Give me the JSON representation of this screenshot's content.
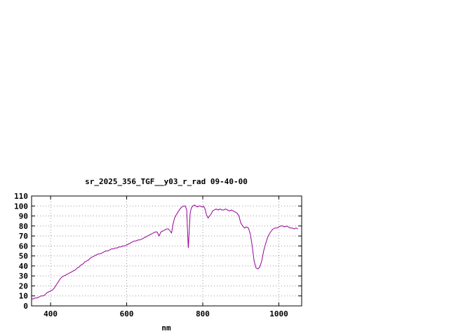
{
  "chart_data": {
    "type": "line",
    "title": "sr_2025_356_TGF__y03_r_rad 09-40-00",
    "xlabel": "nm",
    "ylabel": "",
    "xlim": [
      350,
      1060
    ],
    "ylim": [
      0,
      110
    ],
    "x_ticks": [
      400,
      600,
      800,
      1000
    ],
    "y_ticks": [
      0,
      10,
      20,
      30,
      40,
      50,
      60,
      70,
      80,
      90,
      100,
      110
    ],
    "grid": true,
    "legend": "none",
    "line_color": "#990099",
    "series": [
      {
        "name": "sr_2025_356_TGF__y03_r_rad",
        "points": [
          [
            350,
            7
          ],
          [
            355,
            7
          ],
          [
            360,
            8
          ],
          [
            365,
            8
          ],
          [
            370,
            9
          ],
          [
            375,
            10
          ],
          [
            380,
            10
          ],
          [
            385,
            11
          ],
          [
            390,
            13
          ],
          [
            395,
            14
          ],
          [
            400,
            15
          ],
          [
            405,
            16
          ],
          [
            410,
            18
          ],
          [
            415,
            21
          ],
          [
            420,
            24
          ],
          [
            425,
            27
          ],
          [
            430,
            29
          ],
          [
            435,
            30
          ],
          [
            440,
            31
          ],
          [
            445,
            32
          ],
          [
            450,
            33
          ],
          [
            455,
            34
          ],
          [
            460,
            35
          ],
          [
            465,
            36
          ],
          [
            470,
            38
          ],
          [
            475,
            39
          ],
          [
            480,
            41
          ],
          [
            485,
            42
          ],
          [
            490,
            44
          ],
          [
            495,
            45
          ],
          [
            500,
            46
          ],
          [
            505,
            48
          ],
          [
            510,
            49
          ],
          [
            515,
            50
          ],
          [
            520,
            51
          ],
          [
            525,
            52
          ],
          [
            530,
            52
          ],
          [
            535,
            53
          ],
          [
            540,
            54
          ],
          [
            545,
            55
          ],
          [
            550,
            55
          ],
          [
            555,
            56
          ],
          [
            560,
            57
          ],
          [
            565,
            57
          ],
          [
            570,
            58
          ],
          [
            575,
            58
          ],
          [
            580,
            59
          ],
          [
            585,
            59
          ],
          [
            590,
            60
          ],
          [
            595,
            60
          ],
          [
            600,
            61
          ],
          [
            605,
            62
          ],
          [
            610,
            63
          ],
          [
            615,
            64
          ],
          [
            620,
            65
          ],
          [
            625,
            65
          ],
          [
            630,
            66
          ],
          [
            635,
            66
          ],
          [
            640,
            67
          ],
          [
            645,
            68
          ],
          [
            650,
            69
          ],
          [
            655,
            70
          ],
          [
            660,
            71
          ],
          [
            665,
            72
          ],
          [
            670,
            73
          ],
          [
            675,
            74
          ],
          [
            680,
            74
          ],
          [
            685,
            70
          ],
          [
            690,
            74
          ],
          [
            695,
            75
          ],
          [
            700,
            76
          ],
          [
            705,
            77
          ],
          [
            710,
            77
          ],
          [
            714,
            75
          ],
          [
            718,
            73
          ],
          [
            722,
            82
          ],
          [
            726,
            88
          ],
          [
            730,
            91
          ],
          [
            735,
            94
          ],
          [
            740,
            97
          ],
          [
            745,
            99
          ],
          [
            750,
            100
          ],
          [
            754,
            100
          ],
          [
            758,
            96
          ],
          [
            760,
            75
          ],
          [
            762,
            58
          ],
          [
            764,
            72
          ],
          [
            767,
            93
          ],
          [
            770,
            98
          ],
          [
            774,
            100
          ],
          [
            778,
            101
          ],
          [
            782,
            100
          ],
          [
            786,
            99
          ],
          [
            790,
            100
          ],
          [
            794,
            100
          ],
          [
            798,
            99
          ],
          [
            802,
            100
          ],
          [
            806,
            97
          ],
          [
            810,
            91
          ],
          [
            814,
            88
          ],
          [
            818,
            90
          ],
          [
            822,
            92
          ],
          [
            826,
            95
          ],
          [
            830,
            96
          ],
          [
            835,
            97
          ],
          [
            840,
            96
          ],
          [
            845,
            97
          ],
          [
            850,
            96
          ],
          [
            855,
            96
          ],
          [
            860,
            97
          ],
          [
            865,
            96
          ],
          [
            870,
            95
          ],
          [
            875,
            96
          ],
          [
            880,
            95
          ],
          [
            885,
            94
          ],
          [
            890,
            93
          ],
          [
            895,
            90
          ],
          [
            900,
            83
          ],
          [
            905,
            80
          ],
          [
            910,
            78
          ],
          [
            915,
            79
          ],
          [
            920,
            78
          ],
          [
            925,
            72
          ],
          [
            930,
            60
          ],
          [
            935,
            45
          ],
          [
            940,
            38
          ],
          [
            945,
            37
          ],
          [
            950,
            39
          ],
          [
            955,
            45
          ],
          [
            960,
            55
          ],
          [
            965,
            62
          ],
          [
            970,
            68
          ],
          [
            975,
            72
          ],
          [
            980,
            75
          ],
          [
            985,
            77
          ],
          [
            990,
            78
          ],
          [
            995,
            78
          ],
          [
            1000,
            79
          ],
          [
            1005,
            80
          ],
          [
            1010,
            80
          ],
          [
            1015,
            79
          ],
          [
            1020,
            80
          ],
          [
            1025,
            79
          ],
          [
            1030,
            78
          ],
          [
            1035,
            78
          ],
          [
            1040,
            77
          ],
          [
            1045,
            78
          ],
          [
            1050,
            77
          ]
        ]
      }
    ]
  }
}
